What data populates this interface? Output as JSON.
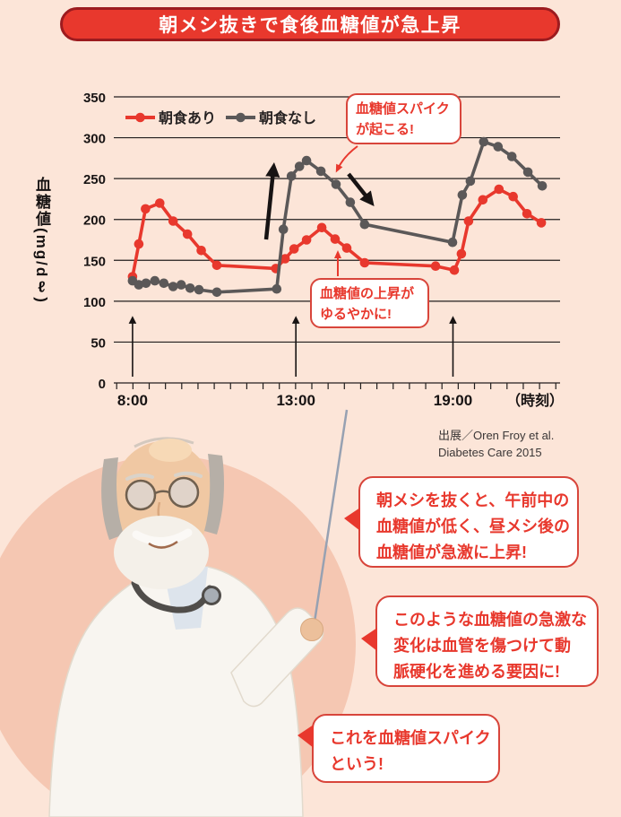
{
  "page": {
    "background": "#fce5d8",
    "accent_red": "#e8382d",
    "circle_color": "#f5c7b2",
    "callout_border": "#d8453b",
    "grid_color": "#221e1e"
  },
  "title": {
    "text": "朝メシ抜きで食後血糖値が急上昇"
  },
  "chart_data": {
    "type": "line",
    "title": "朝メシ抜きで食後血糖値が急上昇",
    "ylabel": "血糖値(mg/dℓ)",
    "xlabel": "（時刻）",
    "ylim": [
      0,
      350
    ],
    "yticks": [
      350,
      300,
      250,
      200,
      150,
      100,
      50,
      0
    ],
    "grid": "horizontal",
    "legend_position": "top-left-inside",
    "xticks": [
      {
        "label": "8:00",
        "x": 0.042
      },
      {
        "label": "13:00",
        "x": 0.408
      },
      {
        "label": "19:00",
        "x": 0.76
      }
    ],
    "meal_arrow_times": [
      "8:00",
      "13:00",
      "19:00"
    ],
    "series": [
      {
        "name": "朝食あり",
        "color": "#e8382d",
        "points": [
          {
            "x": 0.042,
            "v": 130
          },
          {
            "x": 0.056,
            "v": 170
          },
          {
            "x": 0.071,
            "v": 213
          },
          {
            "x": 0.103,
            "v": 220
          },
          {
            "x": 0.133,
            "v": 198
          },
          {
            "x": 0.165,
            "v": 182
          },
          {
            "x": 0.196,
            "v": 162
          },
          {
            "x": 0.231,
            "v": 144
          },
          {
            "x": 0.363,
            "v": 140
          },
          {
            "x": 0.384,
            "v": 152
          },
          {
            "x": 0.404,
            "v": 164
          },
          {
            "x": 0.432,
            "v": 175
          },
          {
            "x": 0.466,
            "v": 190
          },
          {
            "x": 0.496,
            "v": 176
          },
          {
            "x": 0.522,
            "v": 165
          },
          {
            "x": 0.562,
            "v": 147
          },
          {
            "x": 0.721,
            "v": 143
          },
          {
            "x": 0.763,
            "v": 138
          },
          {
            "x": 0.779,
            "v": 158
          },
          {
            "x": 0.795,
            "v": 198
          },
          {
            "x": 0.827,
            "v": 224
          },
          {
            "x": 0.863,
            "v": 237
          },
          {
            "x": 0.895,
            "v": 228
          },
          {
            "x": 0.926,
            "v": 207
          },
          {
            "x": 0.958,
            "v": 196
          }
        ]
      },
      {
        "name": "朝食なし",
        "color": "#5b5858",
        "points": [
          {
            "x": 0.042,
            "v": 125
          },
          {
            "x": 0.056,
            "v": 120
          },
          {
            "x": 0.072,
            "v": 122
          },
          {
            "x": 0.092,
            "v": 125
          },
          {
            "x": 0.112,
            "v": 122
          },
          {
            "x": 0.133,
            "v": 118
          },
          {
            "x": 0.151,
            "v": 120
          },
          {
            "x": 0.171,
            "v": 116
          },
          {
            "x": 0.191,
            "v": 114
          },
          {
            "x": 0.231,
            "v": 111
          },
          {
            "x": 0.365,
            "v": 115
          },
          {
            "x": 0.38,
            "v": 188
          },
          {
            "x": 0.398,
            "v": 253
          },
          {
            "x": 0.416,
            "v": 265
          },
          {
            "x": 0.432,
            "v": 272
          },
          {
            "x": 0.464,
            "v": 259
          },
          {
            "x": 0.498,
            "v": 243
          },
          {
            "x": 0.53,
            "v": 221
          },
          {
            "x": 0.562,
            "v": 194
          },
          {
            "x": 0.759,
            "v": 172
          },
          {
            "x": 0.781,
            "v": 230
          },
          {
            "x": 0.799,
            "v": 247
          },
          {
            "x": 0.829,
            "v": 295
          },
          {
            "x": 0.861,
            "v": 289
          },
          {
            "x": 0.892,
            "v": 277
          },
          {
            "x": 0.928,
            "v": 258
          },
          {
            "x": 0.96,
            "v": 241
          }
        ]
      }
    ]
  },
  "annotations": {
    "spike_callout": {
      "lines": [
        "血糖値スパイク",
        "が起こる!"
      ]
    },
    "gentle_callout": {
      "lines": [
        "血糖値の上昇が",
        "ゆるやかに!"
      ]
    }
  },
  "source": {
    "line1": "出展／Oren Froy et al.",
    "line2": "Diabetes Care 2015"
  },
  "bubbles": [
    {
      "lines": [
        "朝メシを抜くと、午前中の",
        "血糖値が低く、昼メシ後の",
        "血糖値が急激に上昇!"
      ]
    },
    {
      "lines": [
        "このような血糖値の急激な",
        "変化は血管を傷つけて動",
        "脈硬化を進める要因に!"
      ]
    },
    {
      "lines": [
        "これを血糖値スパイク",
        "という!"
      ]
    }
  ]
}
